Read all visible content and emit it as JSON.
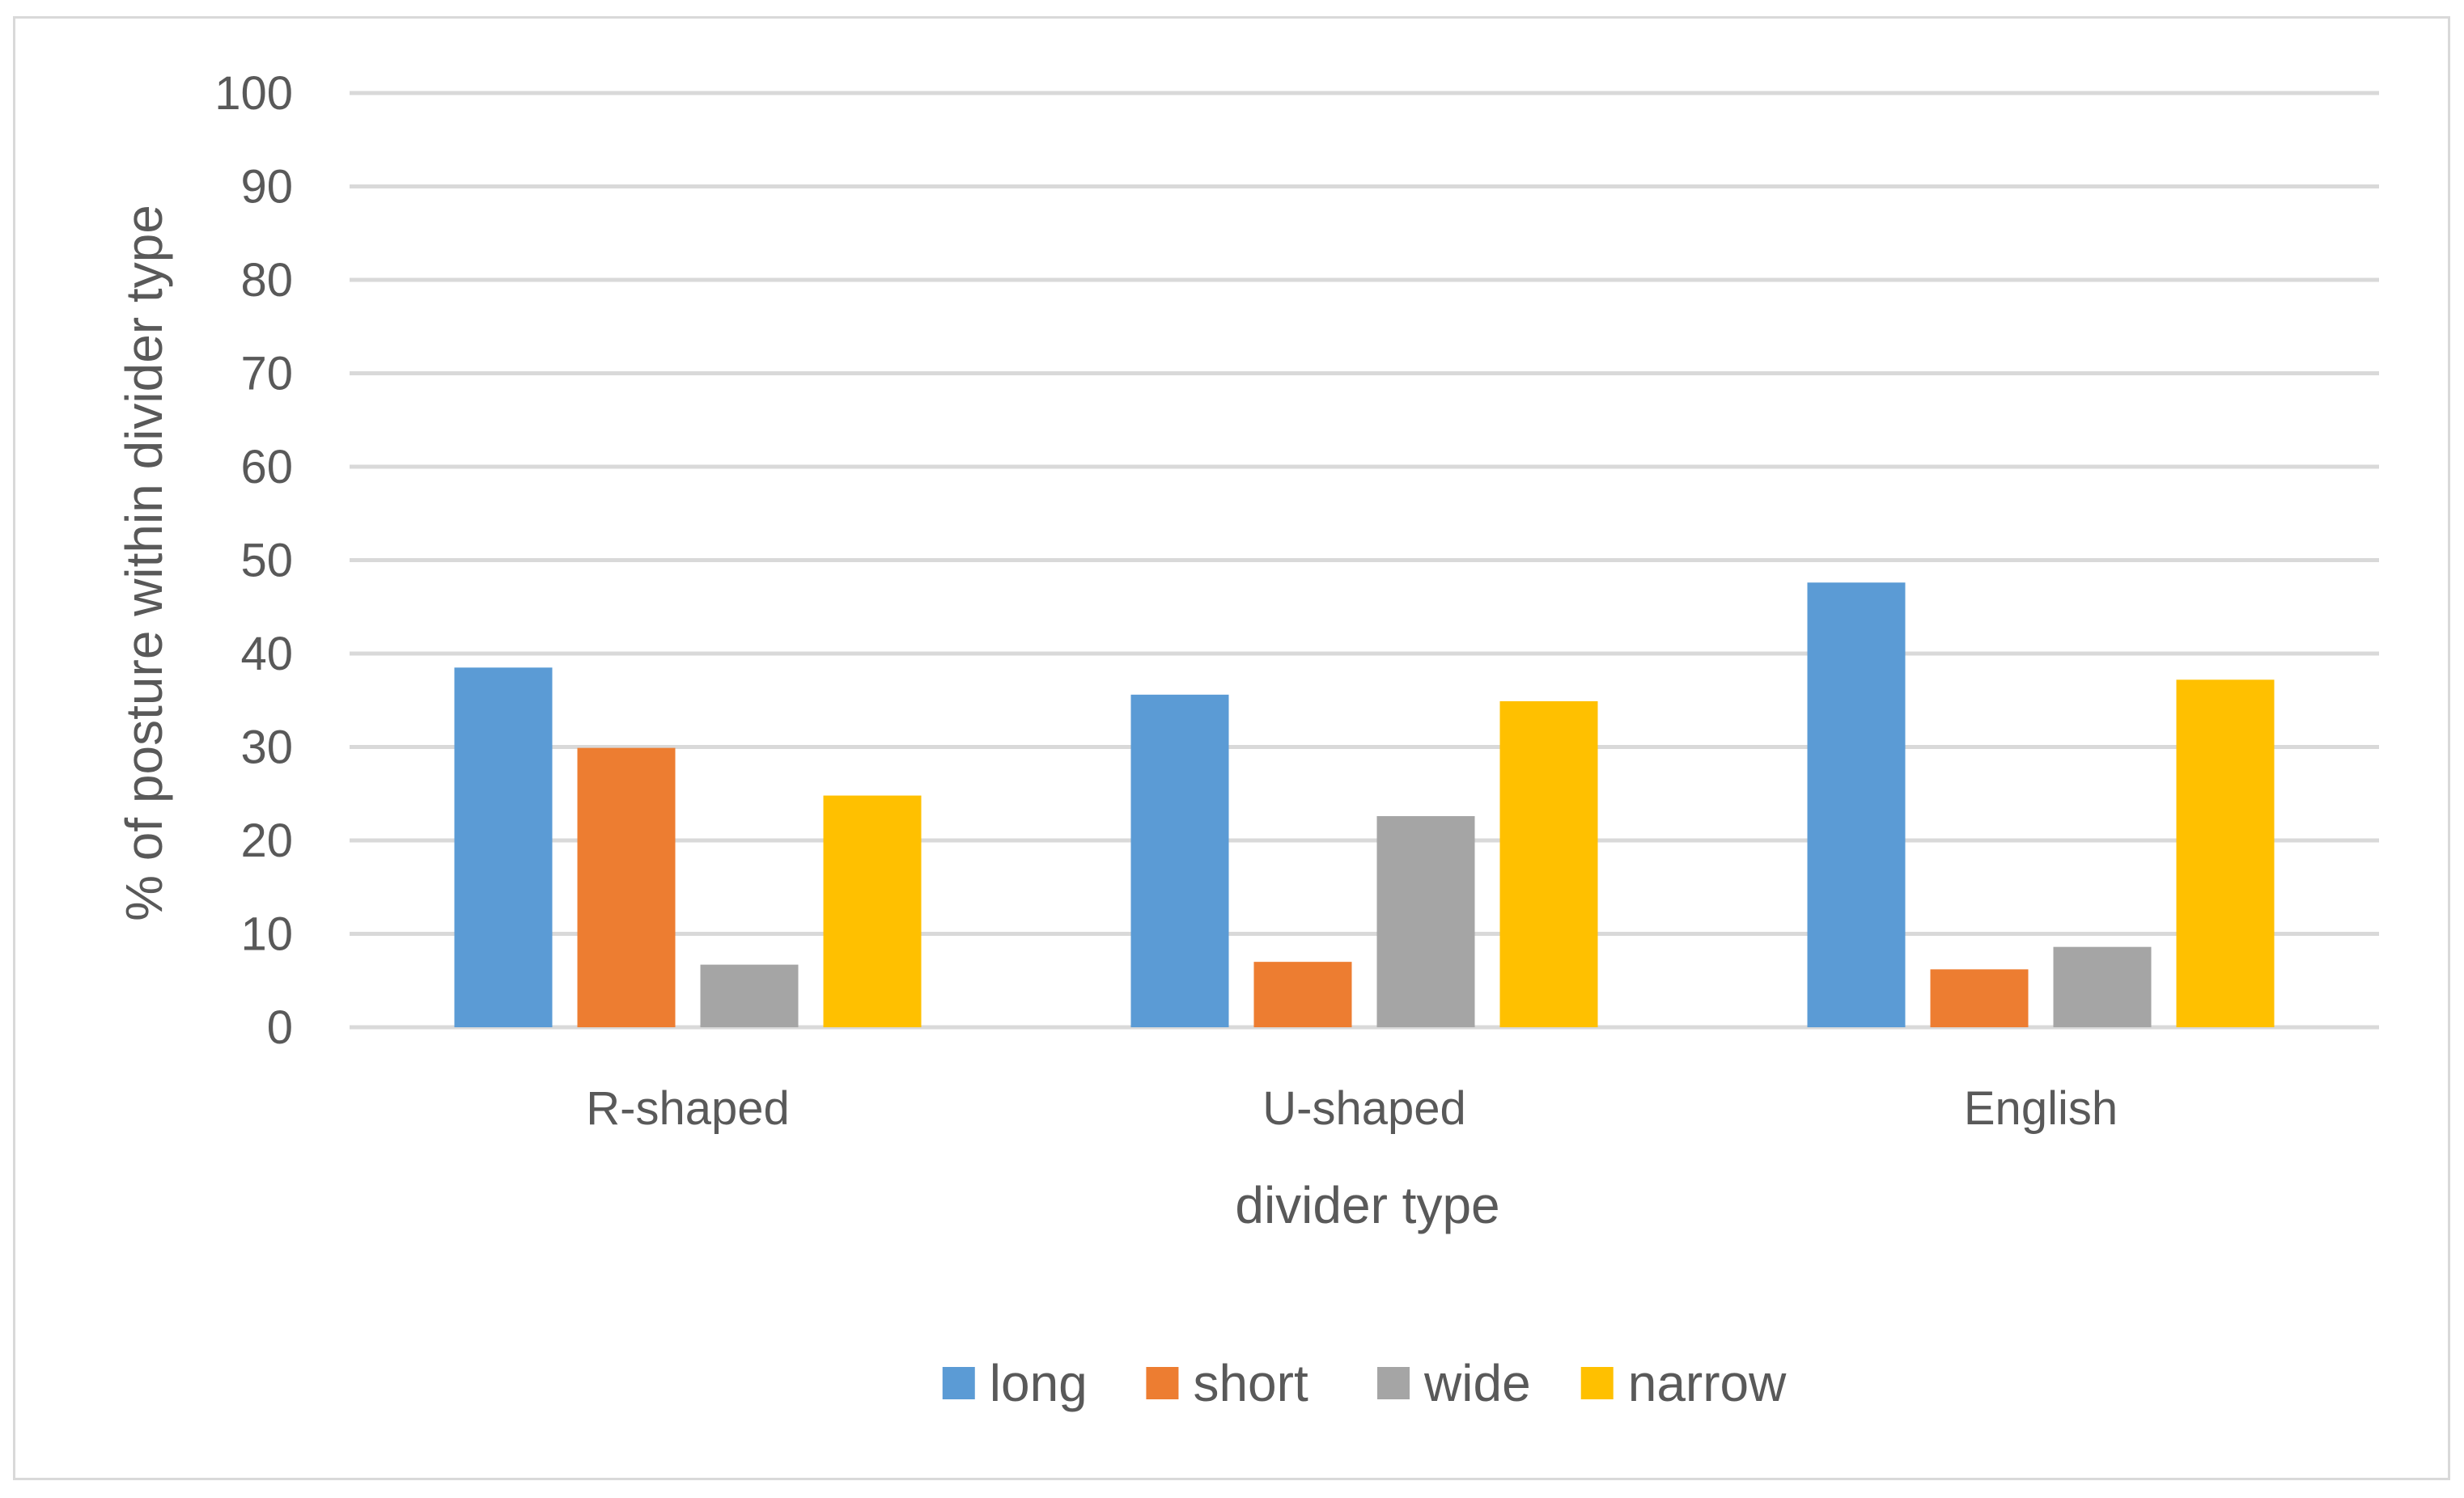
{
  "chart_data": {
    "type": "bar",
    "title": "",
    "xlabel": "divider type",
    "ylabel": "% of posture within divider type",
    "categories": [
      "R-shaped",
      "U-shaped",
      "English"
    ],
    "series": [
      {
        "name": "long",
        "color": "#5b9bd5",
        "values": [
          38.5,
          35.6,
          47.6
        ]
      },
      {
        "name": "short",
        "color": "#ed7d31",
        "values": [
          29.9,
          7.0,
          6.2
        ]
      },
      {
        "name": "wide",
        "color": "#a5a5a5",
        "values": [
          6.7,
          22.6,
          8.6
        ]
      },
      {
        "name": "narrow",
        "color": "#ffc000",
        "values": [
          24.8,
          34.9,
          37.2
        ]
      }
    ],
    "ylim": [
      0,
      100
    ],
    "yticks": [
      0,
      10,
      20,
      30,
      40,
      50,
      60,
      70,
      80,
      90,
      100
    ],
    "grid": true,
    "legend": "bottom-center",
    "colors": {
      "gridline": "#d9d9d9",
      "text": "#595959",
      "frame": "#d9d9d9"
    }
  }
}
